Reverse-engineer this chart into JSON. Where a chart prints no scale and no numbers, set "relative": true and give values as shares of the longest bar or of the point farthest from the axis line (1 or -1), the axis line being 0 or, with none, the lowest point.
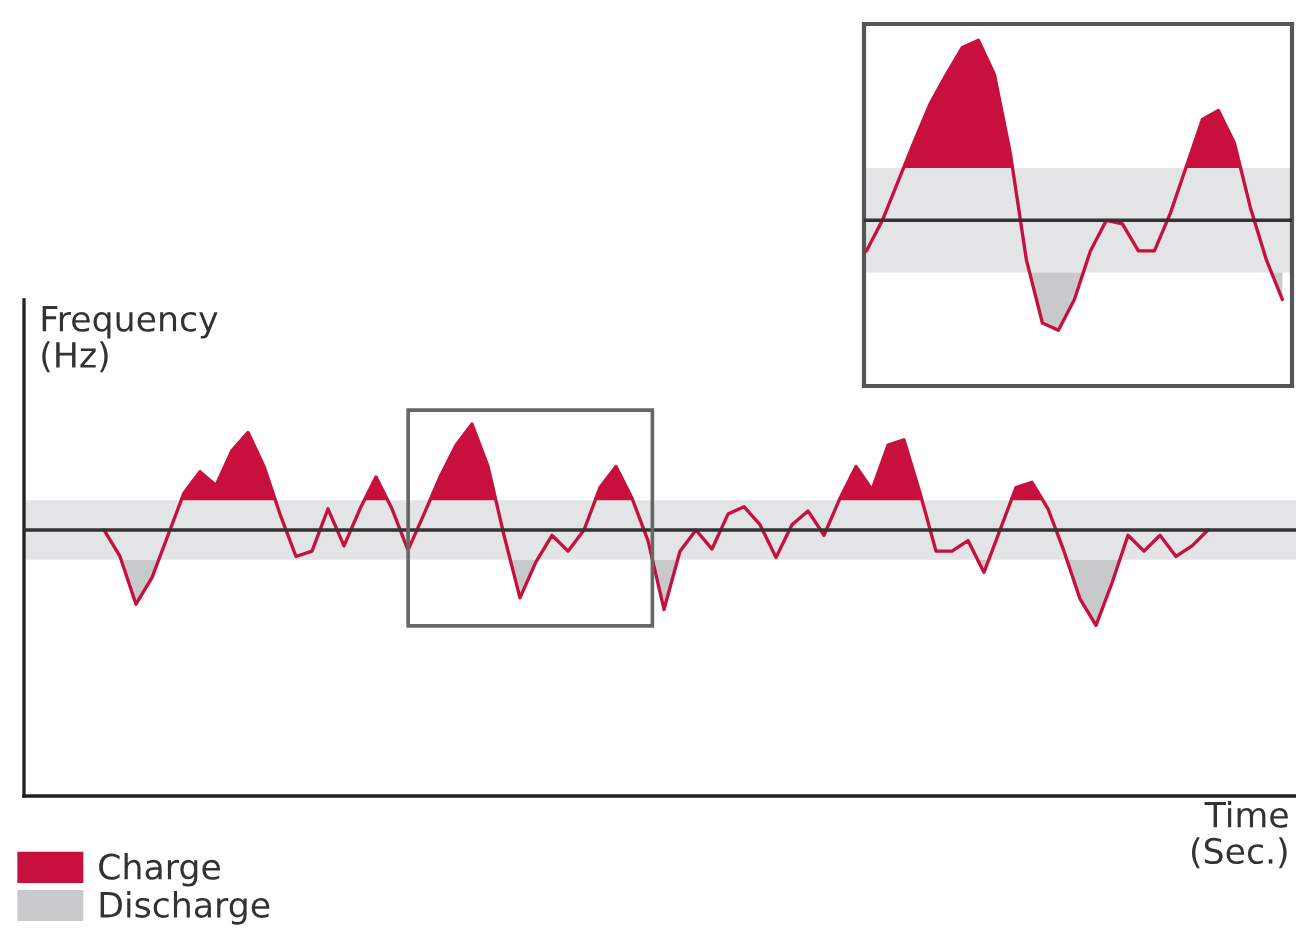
{
  "chart_data": [
    {
      "type": "line",
      "relative": true,
      "ylabel": "Frequency\n(Hz)",
      "xlabel": "Time\n(Sec.)",
      "legend": "bottom left",
      "annotations": [
        "Discharge"
      ],
      "categories": [
        null,
        null,
        null,
        null,
        null,
        null,
        null,
        null,
        null,
        null,
        null,
        null,
        null,
        null,
        null,
        null,
        null,
        null,
        null,
        null,
        null,
        null,
        null,
        null,
        null,
        null,
        null,
        null,
        null,
        null,
        null,
        null,
        null,
        null,
        null,
        null,
        null,
        null,
        null,
        null,
        null,
        null,
        null,
        null,
        null,
        null,
        null,
        null,
        null,
        null,
        null,
        null,
        null,
        null,
        null,
        null,
        null,
        null,
        null,
        null,
        null,
        null,
        null,
        null,
        null,
        null,
        null,
        null,
        null,
        null,
        null,
        null,
        null
      ],
      "ref_lines": [
        {
          "axis": "y",
          "value": 0,
          "color": "#333333"
        }
      ],
      "bands": [
        {
          "axis": "y",
          "from": -0.28,
          "to": 0.28,
          "color": "#e3e4e6"
        }
      ],
      "series": [
        {
          "name": "Charge",
          "color": "#c8103e",
          "values": [
            null,
            null,
            null,
            0,
            -0.25,
            -0.7,
            -0.45,
            -0.05,
            0.35,
            0.55,
            0.42,
            0.75,
            0.92,
            0.6,
            0.15,
            -0.25,
            -0.2,
            0.2,
            -0.15,
            0.2,
            0.5,
            0.2,
            -0.19,
            0.15,
            0.5,
            0.8,
            1.0,
            0.6,
            -0.05,
            -0.64,
            -0.3,
            -0.05,
            -0.2,
            0,
            0.4,
            0.6,
            0.3,
            -0.1,
            -0.75,
            -0.2,
            0,
            -0.18,
            0.15,
            0.22,
            0.05,
            -0.26,
            0.05,
            0.18,
            -0.05,
            0.3,
            0.6,
            0.38,
            0.8,
            0.85,
            0.35,
            -0.2,
            -0.2,
            -0.1,
            -0.4,
            0,
            0.4,
            0.45,
            0.2,
            -0.2,
            -0.65,
            -0.9,
            -0.5,
            -0.05,
            -0.2,
            -0.05,
            -0.25,
            -0.15,
            0
          ]
        }
      ]
    },
    {
      "type": "line",
      "relative": true,
      "categories": [
        null,
        null,
        null,
        null,
        null,
        null,
        null,
        null,
        null,
        null,
        null,
        null,
        null,
        null,
        null,
        null,
        null,
        null,
        null,
        null,
        null,
        null,
        null,
        null,
        null,
        null,
        null
      ],
      "ref_lines": [
        {
          "axis": "y",
          "value": 0,
          "color": "#333333"
        }
      ],
      "bands": [
        {
          "axis": "y",
          "from": -0.29,
          "to": 0.29,
          "color": "#e3e4e6"
        }
      ],
      "series": [
        {
          "color": "#c8103e",
          "values": [
            -0.17,
            0,
            0.22,
            0.44,
            0.65,
            0.81,
            0.96,
            1.0,
            0.81,
            0.37,
            -0.22,
            -0.57,
            -0.61,
            -0.44,
            -0.17,
            0,
            -0.02,
            -0.17,
            -0.17,
            0.04,
            0.3,
            0.56,
            0.61,
            0.43,
            0.07,
            -0.22,
            -0.44
          ]
        }
      ]
    }
  ]
}
